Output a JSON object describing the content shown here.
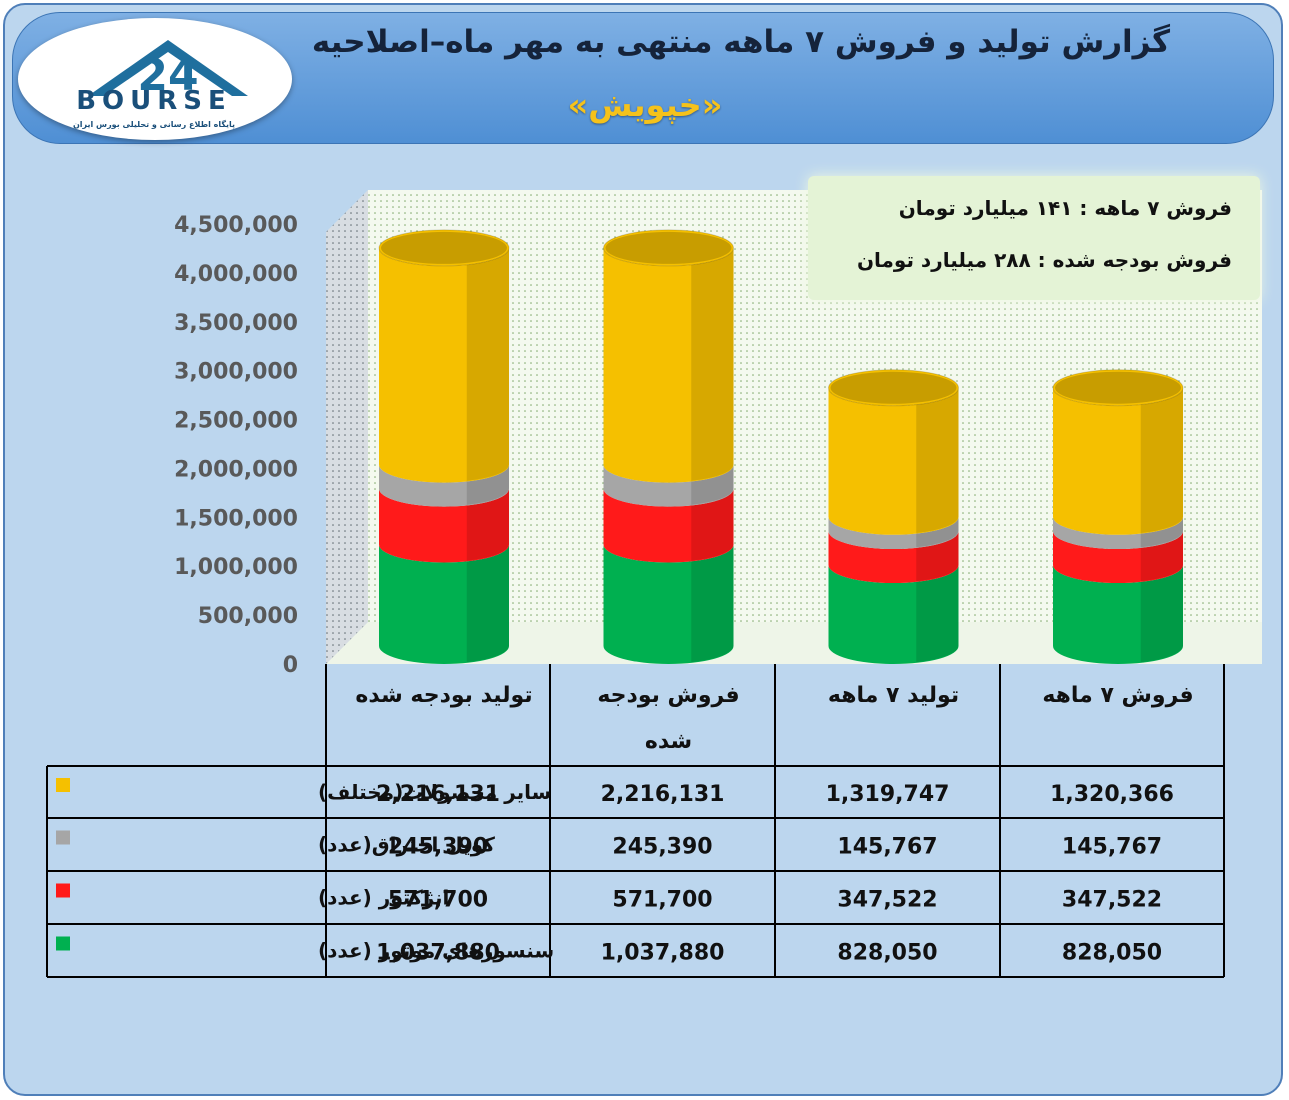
{
  "header": {
    "title": "گزارش تولید و فروش ۷ ماهه منتهی به مهر ماه–اصلاحیه",
    "subtitle": "«خپویش»",
    "logo_text": "BOURSE",
    "logo_mark": "24",
    "logo_subtext": "پایگاه اطلاع رسانی و تحلیلی بورس ایران"
  },
  "note": {
    "line1": "فروش ۷ ماهه : ۱۴۱ میلیارد تومان",
    "line2": "فروش بودجه شده : ۲۸۸ میلیارد تومان"
  },
  "colors": {
    "frame_bg": "#bcd6ee",
    "header": "#5a96d8",
    "others": "#f5c000",
    "coil": "#a6a6a6",
    "injector": "#ff1a1a",
    "sensors": "#00b050"
  },
  "chart_data": {
    "type": "bar",
    "stacked": true,
    "style": "3d-cylinder",
    "categories": [
      "تولید بودجه شده",
      "فروش بودجه شده",
      "تولید ۷ ماهه",
      "فروش ۷ ماهه"
    ],
    "category_display": [
      "تولید بودجه شده",
      "فروش بودجه\nشده",
      "تولید ۷ ماهه",
      "فروش ۷ ماهه"
    ],
    "series": [
      {
        "name": "سنسورهای موتور (عدد)",
        "color": "#00b050",
        "values": [
          1037880,
          1037880,
          828050,
          828050
        ],
        "labels": [
          "1,037,880",
          "1,037,880",
          "828,050",
          "828,050"
        ]
      },
      {
        "name": "انژکتور (عدد)",
        "color": "#ff1a1a",
        "values": [
          571700,
          571700,
          347522,
          347522
        ],
        "labels": [
          "571,700",
          "571,700",
          "347,522",
          "347,522"
        ]
      },
      {
        "name": "کویل احتراق(عدد)",
        "color": "#a6a6a6",
        "values": [
          245390,
          245390,
          145767,
          145767
        ],
        "labels": [
          "245,390",
          "245,390",
          "145,767",
          "145,767"
        ]
      },
      {
        "name": "سایر محصولات(مختلف)",
        "color": "#f5c000",
        "values": [
          2216131,
          2216131,
          1319747,
          1320366
        ],
        "labels": [
          "2,216,131",
          "2,216,131",
          "1,319,747",
          "1,320,366"
        ]
      }
    ],
    "table_row_order": [
      3,
      2,
      1,
      0
    ],
    "yticks": [
      0,
      500000,
      1000000,
      1500000,
      2000000,
      2500000,
      3000000,
      3500000,
      4000000,
      4500000
    ],
    "ytick_labels": [
      "0",
      "500,000",
      "1,000,000",
      "1,500,000",
      "2,000,000",
      "2,500,000",
      "3,000,000",
      "3,500,000",
      "4,000,000",
      "4,500,000"
    ],
    "ylim": [
      0,
      4500000
    ],
    "grid": true,
    "legend": "data-table"
  }
}
